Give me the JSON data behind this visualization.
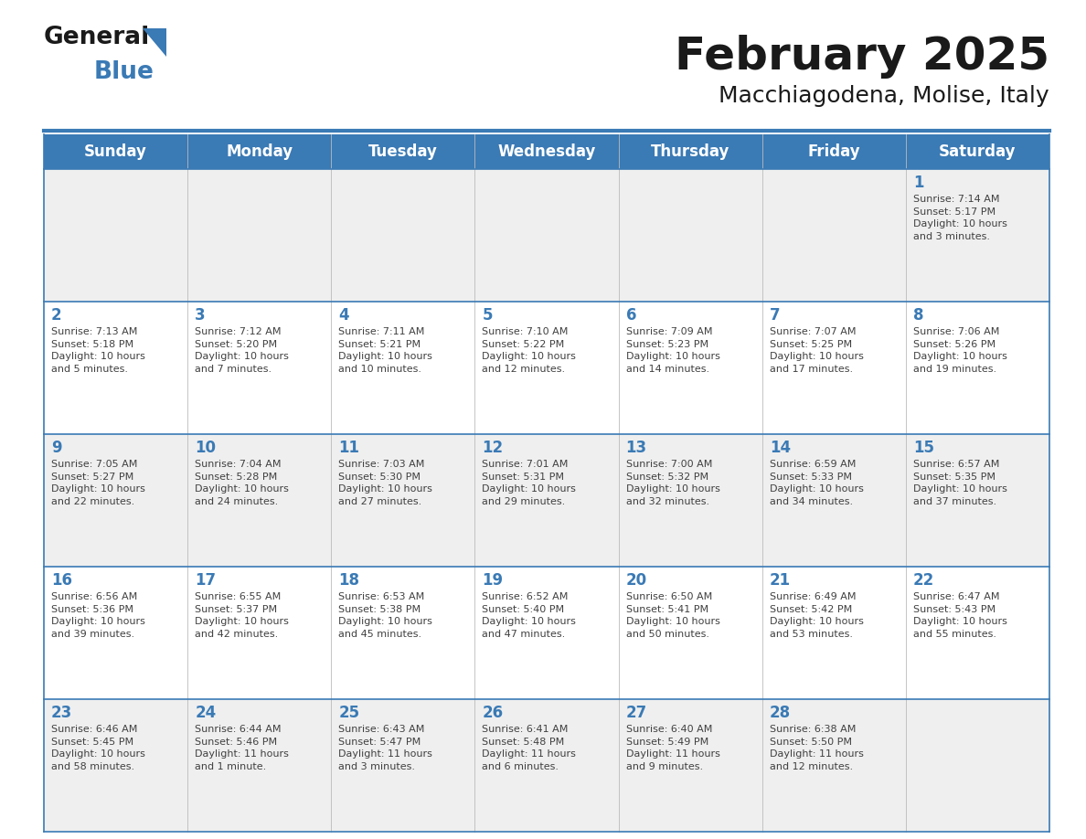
{
  "title": "February 2025",
  "subtitle": "Macchiagodena, Molise, Italy",
  "header_bg": "#3A7AB5",
  "header_text": "#FFFFFF",
  "cell_bg_odd": "#EFEFEF",
  "cell_bg_even": "#FFFFFF",
  "day_number_color": "#3A7AB5",
  "cell_text_color": "#404040",
  "border_color": "#3A7AB5",
  "days_of_week": [
    "Sunday",
    "Monday",
    "Tuesday",
    "Wednesday",
    "Thursday",
    "Friday",
    "Saturday"
  ],
  "weeks": [
    [
      {
        "day": null,
        "info": null
      },
      {
        "day": null,
        "info": null
      },
      {
        "day": null,
        "info": null
      },
      {
        "day": null,
        "info": null
      },
      {
        "day": null,
        "info": null
      },
      {
        "day": null,
        "info": null
      },
      {
        "day": 1,
        "info": "Sunrise: 7:14 AM\nSunset: 5:17 PM\nDaylight: 10 hours\nand 3 minutes."
      }
    ],
    [
      {
        "day": 2,
        "info": "Sunrise: 7:13 AM\nSunset: 5:18 PM\nDaylight: 10 hours\nand 5 minutes."
      },
      {
        "day": 3,
        "info": "Sunrise: 7:12 AM\nSunset: 5:20 PM\nDaylight: 10 hours\nand 7 minutes."
      },
      {
        "day": 4,
        "info": "Sunrise: 7:11 AM\nSunset: 5:21 PM\nDaylight: 10 hours\nand 10 minutes."
      },
      {
        "day": 5,
        "info": "Sunrise: 7:10 AM\nSunset: 5:22 PM\nDaylight: 10 hours\nand 12 minutes."
      },
      {
        "day": 6,
        "info": "Sunrise: 7:09 AM\nSunset: 5:23 PM\nDaylight: 10 hours\nand 14 minutes."
      },
      {
        "day": 7,
        "info": "Sunrise: 7:07 AM\nSunset: 5:25 PM\nDaylight: 10 hours\nand 17 minutes."
      },
      {
        "day": 8,
        "info": "Sunrise: 7:06 AM\nSunset: 5:26 PM\nDaylight: 10 hours\nand 19 minutes."
      }
    ],
    [
      {
        "day": 9,
        "info": "Sunrise: 7:05 AM\nSunset: 5:27 PM\nDaylight: 10 hours\nand 22 minutes."
      },
      {
        "day": 10,
        "info": "Sunrise: 7:04 AM\nSunset: 5:28 PM\nDaylight: 10 hours\nand 24 minutes."
      },
      {
        "day": 11,
        "info": "Sunrise: 7:03 AM\nSunset: 5:30 PM\nDaylight: 10 hours\nand 27 minutes."
      },
      {
        "day": 12,
        "info": "Sunrise: 7:01 AM\nSunset: 5:31 PM\nDaylight: 10 hours\nand 29 minutes."
      },
      {
        "day": 13,
        "info": "Sunrise: 7:00 AM\nSunset: 5:32 PM\nDaylight: 10 hours\nand 32 minutes."
      },
      {
        "day": 14,
        "info": "Sunrise: 6:59 AM\nSunset: 5:33 PM\nDaylight: 10 hours\nand 34 minutes."
      },
      {
        "day": 15,
        "info": "Sunrise: 6:57 AM\nSunset: 5:35 PM\nDaylight: 10 hours\nand 37 minutes."
      }
    ],
    [
      {
        "day": 16,
        "info": "Sunrise: 6:56 AM\nSunset: 5:36 PM\nDaylight: 10 hours\nand 39 minutes."
      },
      {
        "day": 17,
        "info": "Sunrise: 6:55 AM\nSunset: 5:37 PM\nDaylight: 10 hours\nand 42 minutes."
      },
      {
        "day": 18,
        "info": "Sunrise: 6:53 AM\nSunset: 5:38 PM\nDaylight: 10 hours\nand 45 minutes."
      },
      {
        "day": 19,
        "info": "Sunrise: 6:52 AM\nSunset: 5:40 PM\nDaylight: 10 hours\nand 47 minutes."
      },
      {
        "day": 20,
        "info": "Sunrise: 6:50 AM\nSunset: 5:41 PM\nDaylight: 10 hours\nand 50 minutes."
      },
      {
        "day": 21,
        "info": "Sunrise: 6:49 AM\nSunset: 5:42 PM\nDaylight: 10 hours\nand 53 minutes."
      },
      {
        "day": 22,
        "info": "Sunrise: 6:47 AM\nSunset: 5:43 PM\nDaylight: 10 hours\nand 55 minutes."
      }
    ],
    [
      {
        "day": 23,
        "info": "Sunrise: 6:46 AM\nSunset: 5:45 PM\nDaylight: 10 hours\nand 58 minutes."
      },
      {
        "day": 24,
        "info": "Sunrise: 6:44 AM\nSunset: 5:46 PM\nDaylight: 11 hours\nand 1 minute."
      },
      {
        "day": 25,
        "info": "Sunrise: 6:43 AM\nSunset: 5:47 PM\nDaylight: 11 hours\nand 3 minutes."
      },
      {
        "day": 26,
        "info": "Sunrise: 6:41 AM\nSunset: 5:48 PM\nDaylight: 11 hours\nand 6 minutes."
      },
      {
        "day": 27,
        "info": "Sunrise: 6:40 AM\nSunset: 5:49 PM\nDaylight: 11 hours\nand 9 minutes."
      },
      {
        "day": 28,
        "info": "Sunrise: 6:38 AM\nSunset: 5:50 PM\nDaylight: 11 hours\nand 12 minutes."
      },
      {
        "day": null,
        "info": null
      }
    ]
  ],
  "logo_general_color": "#1a1a1a",
  "logo_blue_color": "#3A7AB5",
  "title_fontsize": 36,
  "subtitle_fontsize": 18,
  "header_fontsize": 12,
  "day_num_fontsize": 12,
  "cell_text_fontsize": 8
}
